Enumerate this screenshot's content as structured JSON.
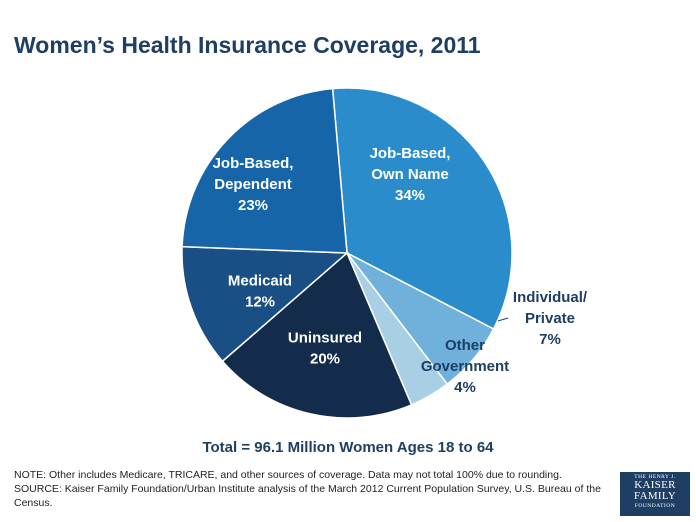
{
  "title": "Women’s Health Insurance Coverage, 2011",
  "chart_data": {
    "type": "pie",
    "title": "Women’s Health Insurance Coverage, 2011",
    "start_angle_deg": 95,
    "direction": "clockwise",
    "slices": [
      {
        "name": "Job-Based, Own Name",
        "label_lines": [
          "Job-Based,",
          "Own Name",
          "34%"
        ],
        "value": 34,
        "color": "#2b8ccc",
        "label_color": "#ffffff"
      },
      {
        "name": "Individual/ Private",
        "label_lines": [
          "Individual/",
          "Private",
          "7%"
        ],
        "value": 7,
        "color": "#6fb1da",
        "label_color": "#1f3e64"
      },
      {
        "name": "Other Government",
        "label_lines": [
          "Other",
          "Government",
          "4%"
        ],
        "value": 4,
        "color": "#a9cfe5",
        "label_color": "#1f3e64"
      },
      {
        "name": "Uninsured",
        "label_lines": [
          "Uninsured",
          "20%"
        ],
        "value": 20,
        "color": "#142c4c",
        "label_color": "#ffffff"
      },
      {
        "name": "Medicaid",
        "label_lines": [
          "Medicaid",
          "12%"
        ],
        "value": 12,
        "color": "#1a4f86",
        "label_color": "#ffffff"
      },
      {
        "name": "Job-Based, Dependent",
        "label_lines": [
          "Job-Based,",
          "Dependent",
          "23%"
        ],
        "value": 23,
        "color": "#1565a8",
        "label_color": "#ffffff"
      }
    ]
  },
  "total": "Total = 96.1 Million Women Ages 18 to 64",
  "note": "NOTE: Other includes Medicare, TRICARE, and other sources of coverage. Data may not total 100% due to rounding.",
  "source": "SOURCE:  Kaiser Family Foundation/Urban Institute analysis of the March 2012 Current Population Survey, U.S. Bureau of the Census.",
  "logo": {
    "top": "THE HENRY J.",
    "line1": "KAISER",
    "line2": "FAMILY",
    "bottom": "FOUNDATION"
  }
}
